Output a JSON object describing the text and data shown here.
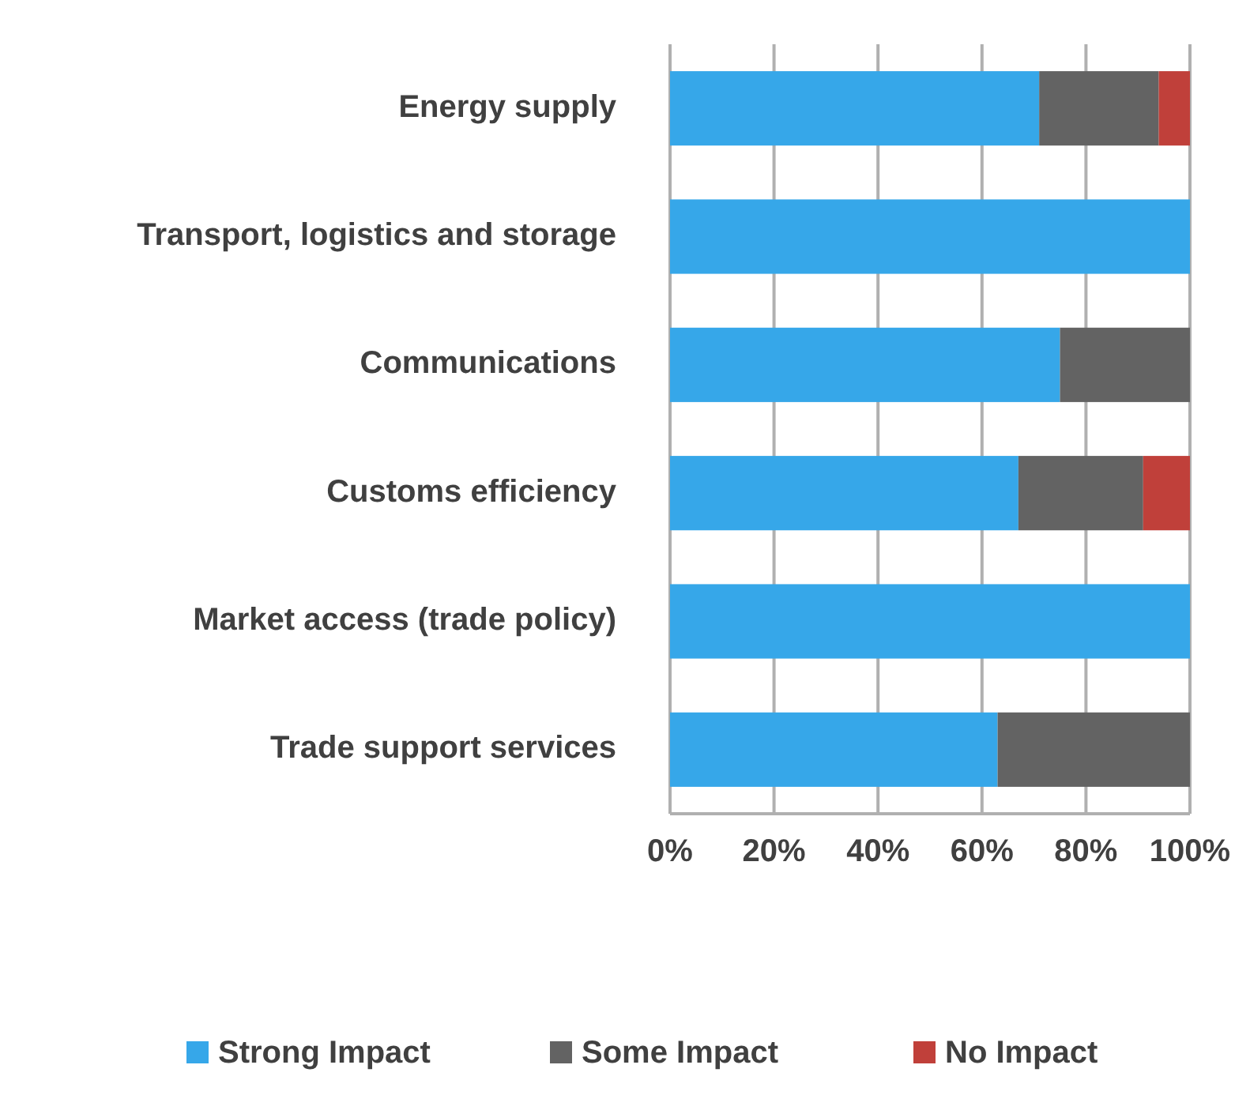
{
  "chart_data": {
    "type": "bar",
    "orientation": "horizontal",
    "stacked": true,
    "categories": [
      "Energy supply",
      "Transport, logistics and storage",
      "Communications",
      "Customs efficiency",
      "Market access (trade policy)",
      "Trade support services"
    ],
    "series": [
      {
        "name": "Strong Impact",
        "color": "#36a7e9",
        "values": [
          71,
          100,
          75,
          67,
          100,
          63
        ]
      },
      {
        "name": "Some Impact",
        "color": "#636363",
        "values": [
          23,
          0,
          25,
          24,
          0,
          37
        ]
      },
      {
        "name": "No Impact",
        "color": "#c0403a",
        "values": [
          6,
          0,
          0,
          9,
          0,
          0
        ]
      }
    ],
    "xlim": [
      0,
      100
    ],
    "xticks": [
      {
        "value": 0,
        "label": "0%"
      },
      {
        "value": 20,
        "label": "20%"
      },
      {
        "value": 40,
        "label": "40%"
      },
      {
        "value": 60,
        "label": "60%"
      },
      {
        "value": 80,
        "label": "80%"
      },
      {
        "value": 100,
        "label": "100%"
      }
    ],
    "grid": "x",
    "legend": "bottom"
  }
}
